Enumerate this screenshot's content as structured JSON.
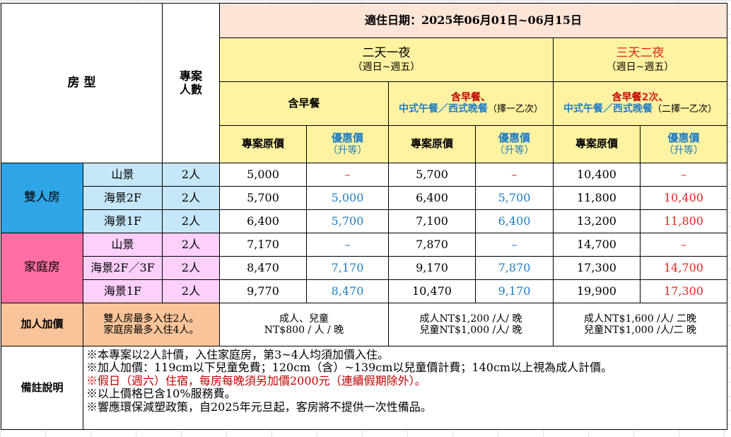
{
  "header": {
    "date_range": "適住日期：2025年06月01日~06月15日",
    "room_type_label": "房 型",
    "people_label_1": "專案",
    "people_label_2": "人數"
  },
  "plans": [
    {
      "title": "二天一夜",
      "days": "（週日~週五）",
      "subplans": [
        {
          "meal": "含早餐",
          "meal_line2": "",
          "meal_note": ""
        },
        {
          "meal": "含早餐、",
          "meal_line2": "中式午餐／西式晚餐",
          "meal_note": "（擇一乙次）"
        }
      ]
    },
    {
      "title": "三天二夜",
      "days": "（週日~週五）",
      "subplans": [
        {
          "meal_a": "含早餐",
          "meal_b": "2次",
          "meal_c": "、",
          "meal_line2": "中式午餐／西式晚餐",
          "meal_note": "（二擇一乙次）"
        }
      ]
    }
  ],
  "price_labels": {
    "original": "專案原價",
    "discount": "優惠價",
    "upgrade": "（升等）"
  },
  "room_groups": [
    {
      "name": "雙人房",
      "rows": [
        {
          "view": "山景",
          "people": "2人",
          "p1_orig": "5,000",
          "p1_disc": "–",
          "p2_orig": "5,700",
          "p2_disc": "–",
          "p3_orig": "10,400",
          "p3_disc": "–"
        },
        {
          "view": "海景2F",
          "people": "2人",
          "p1_orig": "5,700",
          "p1_disc": "5,000",
          "p2_orig": "6,400",
          "p2_disc": "5,700",
          "p3_orig": "11,800",
          "p3_disc": "10,400"
        },
        {
          "view": "海景1F",
          "people": "2人",
          "p1_orig": "6,400",
          "p1_disc": "5,700",
          "p2_orig": "7,100",
          "p2_disc": "6,400",
          "p3_orig": "13,200",
          "p3_disc": "11,800"
        }
      ]
    },
    {
      "name": "家庭房",
      "rows": [
        {
          "view": "山景",
          "people": "2人",
          "p1_orig": "7,170",
          "p1_disc": "–",
          "p2_orig": "7,870",
          "p2_disc": "–",
          "p3_orig": "14,700",
          "p3_disc": "–"
        },
        {
          "view": "海景2F／3F",
          "people": "2人",
          "p1_orig": "8,470",
          "p1_disc": "7,170",
          "p2_orig": "9,170",
          "p2_disc": "7,870",
          "p3_orig": "17,300",
          "p3_disc": "14,700"
        },
        {
          "view": "海景1F",
          "people": "2人",
          "p1_orig": "9,770",
          "p1_disc": "8,470",
          "p2_orig": "10,470",
          "p2_disc": "9,170",
          "p3_orig": "19,900",
          "p3_disc": "17,300"
        }
      ]
    }
  ],
  "extra_person": {
    "label": "加人加價",
    "rule_1": "雙人房最多入住2人。",
    "rule_2": "家庭房最多入住4人。",
    "p1_line1": "成人、兒童",
    "p1_line2": "NT$800 / 人 / 晚",
    "p2_line1": "成人NT$1,200 /人/ 晚",
    "p2_line2": "兒童NT$1,000 /人/ 晚",
    "p3_line1": "成人NT$1,600 /人/ 二晚",
    "p3_line2": "兒童NT$1,000 /人/二 晚"
  },
  "notes": {
    "label": "備註說明",
    "lines": [
      "※本專案以2人計價，入住家庭房，第3~4人均須加價入住。",
      "※加人加價：119cm以下兒童免費；120cm（含）~139cm以兒童價計費；140cm以上視為成人計價。",
      "※假日（週六）住宿，每房每晚須另加價2000元（連續假期除外）。",
      "※以上價格已含10%服務費。",
      "※響應環保減塑政策，自2025年元旦起，客房將不提供一次性備品。"
    ]
  },
  "colors": {
    "header_pink": "#fce4d6",
    "header_yellow": "#fff2a0",
    "double_room_blue": "#2ea5e6",
    "double_room_light": "#c6e7f9",
    "family_room_magenta": "#ff6fa5",
    "family_room_light": "#fcd0fb",
    "extra_peach": "#f9c499",
    "discount_blue_text": "#1f7cc4",
    "discount_red_text": "#e0261e",
    "holiday_note_red": "#c00000"
  }
}
